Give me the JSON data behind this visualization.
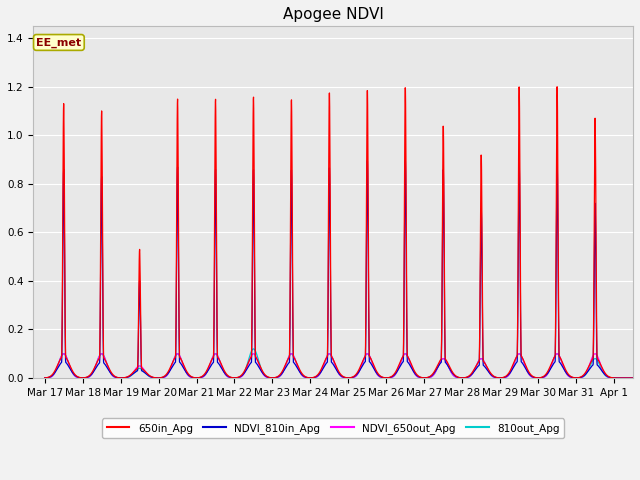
{
  "title": "Apogee NDVI",
  "title_fontsize": 11,
  "fig_bg": "#f2f2f2",
  "plot_bg": "#e8e8e8",
  "annotation_text": "EE_met",
  "annotation_bg": "#ffffcc",
  "annotation_border": "#aaaa00",
  "annotation_text_color": "#8b0000",
  "ylabel_ticks": [
    0.0,
    0.2,
    0.4,
    0.6,
    0.8,
    1.0,
    1.2,
    1.4
  ],
  "ylim": [
    0.0,
    1.45
  ],
  "grid_color": "#ffffff",
  "legend_labels": [
    "650in_Apg",
    "NDVI_810in_Apg",
    "NDVI_650out_Apg",
    "810out_Apg"
  ],
  "legend_colors": [
    "#ff0000",
    "#0000cc",
    "#ff00ff",
    "#00cccc"
  ],
  "x_tick_labels": [
    "Mar 17",
    "Mar 18",
    "Mar 19",
    "Mar 20",
    "Mar 21",
    "Mar 22",
    "Mar 23",
    "Mar 24",
    "Mar 25",
    "Mar 26",
    "Mar 27",
    "Mar 28",
    "Mar 29",
    "Mar 30",
    "Mar 31",
    "Apr 1"
  ],
  "day_peaks_650in": [
    1.13,
    1.1,
    0.53,
    1.15,
    1.15,
    1.16,
    1.15,
    1.18,
    1.19,
    1.2,
    1.04,
    0.92,
    1.2,
    1.2,
    1.07,
    0.0
  ],
  "day_peaks_810in": [
    0.86,
    0.83,
    0.4,
    0.87,
    0.86,
    0.86,
    0.86,
    0.87,
    0.9,
    0.9,
    0.86,
    0.7,
    0.89,
    0.89,
    0.72,
    0.0
  ],
  "day_peaks_650out": [
    0.1,
    0.1,
    0.05,
    0.1,
    0.1,
    0.1,
    0.1,
    0.1,
    0.1,
    0.1,
    0.08,
    0.08,
    0.1,
    0.1,
    0.1,
    0.0
  ],
  "day_peaks_810out": [
    0.1,
    0.1,
    0.04,
    0.1,
    0.1,
    0.12,
    0.1,
    0.1,
    0.1,
    0.1,
    0.08,
    0.08,
    0.1,
    0.1,
    0.08,
    0.0
  ],
  "tickfontsize": 7.5
}
